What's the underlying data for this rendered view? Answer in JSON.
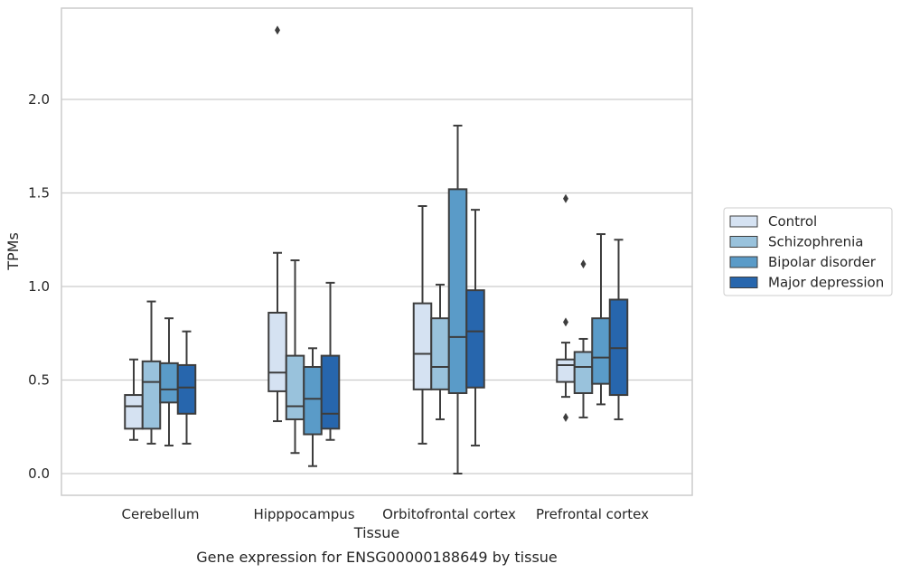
{
  "chart_data": {
    "type": "box",
    "title": "Gene expression for ENSG00000188649 by tissue",
    "xlabel": "Tissue",
    "ylabel": "TPMs",
    "ylim": [
      -0.115,
      2.49
    ],
    "yticks": [
      "0.0",
      "0.5",
      "1.0",
      "1.5",
      "2.0"
    ],
    "yticks_values": [
      0.0,
      0.5,
      1.0,
      1.5,
      2.0
    ],
    "grid": "horizontal",
    "legend_position": "right",
    "categories": [
      "Cerebellum",
      "Hipppocampus",
      "Orbitofrontal cortex",
      "Prefrontal cortex"
    ],
    "series": [
      {
        "name": "Control",
        "color": "#d5e2f2",
        "boxes": [
          {
            "whislo": 0.18,
            "q1": 0.24,
            "med": 0.36,
            "q3": 0.42,
            "whishi": 0.61,
            "fliers": []
          },
          {
            "whislo": 0.28,
            "q1": 0.44,
            "med": 0.54,
            "q3": 0.86,
            "whishi": 1.18,
            "fliers": [
              2.37
            ]
          },
          {
            "whislo": 0.16,
            "q1": 0.45,
            "med": 0.64,
            "q3": 0.91,
            "whishi": 1.43,
            "fliers": []
          },
          {
            "whislo": 0.41,
            "q1": 0.49,
            "med": 0.58,
            "q3": 0.61,
            "whishi": 0.7,
            "fliers": [
              1.47,
              0.81,
              0.3
            ]
          }
        ]
      },
      {
        "name": "Schizophrenia",
        "color": "#99c2dc",
        "boxes": [
          {
            "whislo": 0.16,
            "q1": 0.24,
            "med": 0.49,
            "q3": 0.6,
            "whishi": 0.92,
            "fliers": []
          },
          {
            "whislo": 0.11,
            "q1": 0.29,
            "med": 0.36,
            "q3": 0.63,
            "whishi": 1.14,
            "fliers": []
          },
          {
            "whislo": 0.29,
            "q1": 0.45,
            "med": 0.57,
            "q3": 0.83,
            "whishi": 1.01,
            "fliers": []
          },
          {
            "whislo": 0.3,
            "q1": 0.43,
            "med": 0.57,
            "q3": 0.65,
            "whishi": 0.72,
            "fliers": [
              1.12
            ]
          }
        ]
      },
      {
        "name": "Bipolar disorder",
        "color": "#5a9bc8",
        "boxes": [
          {
            "whislo": 0.15,
            "q1": 0.38,
            "med": 0.45,
            "q3": 0.59,
            "whishi": 0.83,
            "fliers": []
          },
          {
            "whislo": 0.04,
            "q1": 0.21,
            "med": 0.4,
            "q3": 0.57,
            "whishi": 0.67,
            "fliers": []
          },
          {
            "whislo": 0.0,
            "q1": 0.43,
            "med": 0.73,
            "q3": 1.52,
            "whishi": 1.86,
            "fliers": []
          },
          {
            "whislo": 0.37,
            "q1": 0.48,
            "med": 0.62,
            "q3": 0.83,
            "whishi": 1.28,
            "fliers": []
          }
        ]
      },
      {
        "name": "Major depression",
        "color": "#2766ad",
        "boxes": [
          {
            "whislo": 0.16,
            "q1": 0.32,
            "med": 0.46,
            "q3": 0.58,
            "whishi": 0.76,
            "fliers": []
          },
          {
            "whislo": 0.18,
            "q1": 0.24,
            "med": 0.32,
            "q3": 0.63,
            "whishi": 1.02,
            "fliers": []
          },
          {
            "whislo": 0.15,
            "q1": 0.46,
            "med": 0.76,
            "q3": 0.98,
            "whishi": 1.41,
            "fliers": []
          },
          {
            "whislo": 0.29,
            "q1": 0.42,
            "med": 0.67,
            "q3": 0.93,
            "whishi": 1.25,
            "fliers": []
          }
        ]
      }
    ]
  }
}
